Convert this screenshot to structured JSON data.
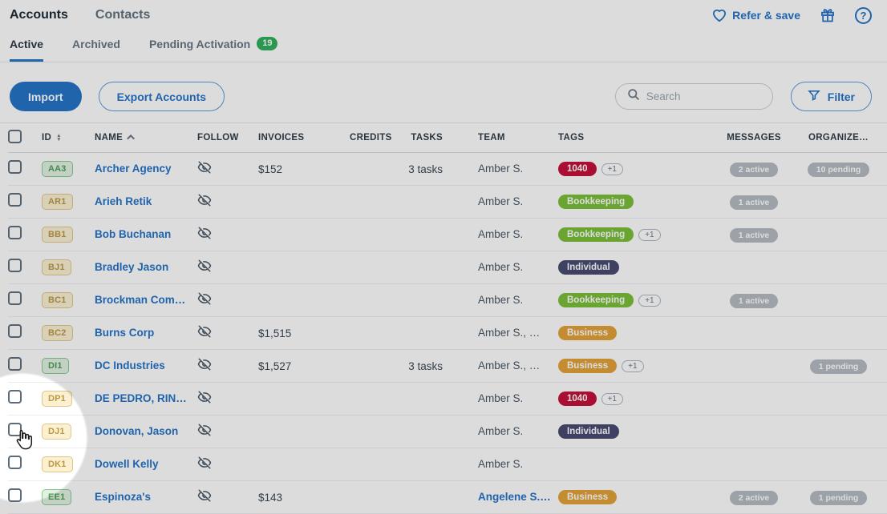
{
  "header": {
    "nav_accounts": "Accounts",
    "nav_contacts": "Contacts",
    "refer_label": "Refer & save",
    "help_glyph": "?"
  },
  "tabs": [
    {
      "label": "Active",
      "active": true
    },
    {
      "label": "Archived",
      "active": false
    },
    {
      "label": "Pending Activation",
      "active": false,
      "badge": "19"
    }
  ],
  "toolbar": {
    "import_label": "Import",
    "export_label": "Export Accounts",
    "search_placeholder": "Search",
    "filter_label": "Filter"
  },
  "colors": {
    "accent_blue": "#1f6fc5",
    "tab_badge_green": "#2bad57",
    "count_badge_gray": "#b3bac0"
  },
  "tag_colors": {
    "red": "#c40a33",
    "green": "#77bd31",
    "navy": "#44466b",
    "amber": "#e2a032"
  },
  "table": {
    "columns": [
      "ID",
      "NAME",
      "FOLLOW",
      "INVOICES",
      "CREDITS",
      "TASKS",
      "TEAM",
      "TAGS",
      "MESSAGES",
      "ORGANIZE…"
    ],
    "rows": [
      {
        "id": "AA3",
        "id_type": "green",
        "name": "Archer Agency",
        "invoices": "$152",
        "credits": "",
        "tasks": "3 tasks",
        "team": "Amber S.",
        "team_link": false,
        "tags": [
          {
            "label": "1040",
            "color": "red"
          }
        ],
        "plus": "+1",
        "messages": "2 active",
        "organize": "10 pending"
      },
      {
        "id": "AR1",
        "id_type": "tan",
        "name": "Arieh Retik",
        "invoices": "",
        "credits": "",
        "tasks": "",
        "team": "Amber S.",
        "team_link": false,
        "tags": [
          {
            "label": "Bookkeeping",
            "color": "green"
          }
        ],
        "plus": "",
        "messages": "1 active",
        "organize": ""
      },
      {
        "id": "BB1",
        "id_type": "tan",
        "name": "Bob Buchanan",
        "invoices": "",
        "credits": "",
        "tasks": "",
        "team": "Amber S.",
        "team_link": false,
        "tags": [
          {
            "label": "Bookkeeping",
            "color": "green"
          }
        ],
        "plus": "+1",
        "messages": "1 active",
        "organize": ""
      },
      {
        "id": "BJ1",
        "id_type": "tan",
        "name": "Bradley Jason",
        "invoices": "",
        "credits": "",
        "tasks": "",
        "team": "Amber S.",
        "team_link": false,
        "tags": [
          {
            "label": "Individual",
            "color": "navy"
          }
        ],
        "plus": "",
        "messages": "",
        "organize": ""
      },
      {
        "id": "BC1",
        "id_type": "tan",
        "name": "Brockman Com…",
        "invoices": "",
        "credits": "",
        "tasks": "",
        "team": "Amber S.",
        "team_link": false,
        "tags": [
          {
            "label": "Bookkeeping",
            "color": "green"
          }
        ],
        "plus": "+1",
        "messages": "1 active",
        "organize": ""
      },
      {
        "id": "BC2",
        "id_type": "tan",
        "name": "Burns Corp",
        "invoices": "$1,515",
        "credits": "",
        "tasks": "",
        "team": "Amber S., …",
        "team_link": false,
        "tags": [
          {
            "label": "Business",
            "color": "amber"
          }
        ],
        "plus": "",
        "messages": "",
        "organize": ""
      },
      {
        "id": "DI1",
        "id_type": "green",
        "name": "DC Industries",
        "invoices": "$1,527",
        "credits": "",
        "tasks": "3 tasks",
        "team": "Amber S., …",
        "team_link": false,
        "tags": [
          {
            "label": "Business",
            "color": "amber"
          }
        ],
        "plus": "+1",
        "messages": "",
        "organize": "1 pending"
      },
      {
        "id": "DP1",
        "id_type": "tan",
        "name": "DE PEDRO, RIN…",
        "invoices": "",
        "credits": "",
        "tasks": "",
        "team": "Amber S.",
        "team_link": false,
        "tags": [
          {
            "label": "1040",
            "color": "red"
          }
        ],
        "plus": "+1",
        "messages": "",
        "organize": ""
      },
      {
        "id": "DJ1",
        "id_type": "tan",
        "name": "Donovan, Jason",
        "invoices": "",
        "credits": "",
        "tasks": "",
        "team": "Amber S.",
        "team_link": false,
        "tags": [
          {
            "label": "Individual",
            "color": "navy"
          }
        ],
        "plus": "",
        "messages": "",
        "organize": ""
      },
      {
        "id": "DK1",
        "id_type": "tan",
        "name": "Dowell Kelly",
        "invoices": "",
        "credits": "",
        "tasks": "",
        "team": "Amber S.",
        "team_link": false,
        "tags": [],
        "plus": "",
        "messages": "",
        "organize": ""
      },
      {
        "id": "EE1",
        "id_type": "green",
        "name": "Espinoza's",
        "invoices": "$143",
        "credits": "",
        "tasks": "",
        "team": "Angelene S.…",
        "team_link": true,
        "tags": [
          {
            "label": "Business",
            "color": "amber"
          }
        ],
        "plus": "",
        "messages": "2 active",
        "organize": "1 pending"
      }
    ]
  }
}
